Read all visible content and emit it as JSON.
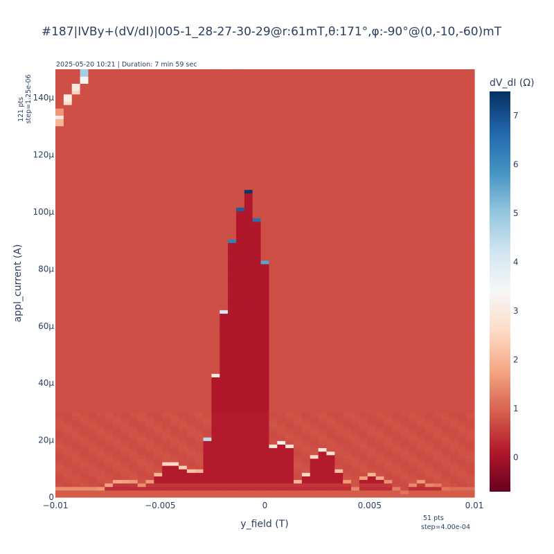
{
  "chart_data": {
    "type": "heatmap",
    "title": "#187|IVBy+(dV/dI)|005-1_28-27-30-29@r:61mT,θ:171°,φ:-90°@(0,-10,-60)mT",
    "subtitle": "2025-05-20 10:21 | Duration: 7 min 59 sec",
    "xlabel": "y_field (T)",
    "ylabel": "appl_current (A)",
    "x_range": [
      -0.01,
      0.01
    ],
    "y_range": [
      0,
      0.00015
    ],
    "x_points_label": "51 pts",
    "x_step_label": "step=4.00e-04",
    "y_points_label": "121 pts",
    "y_step_label": "step=1.25e-06",
    "x_ticks": [
      {
        "value": -0.01,
        "label": "−0.01"
      },
      {
        "value": -0.005,
        "label": "−0.005"
      },
      {
        "value": 0,
        "label": "0"
      },
      {
        "value": 0.005,
        "label": "0.005"
      },
      {
        "value": 0.01,
        "label": "0.01"
      }
    ],
    "y_ticks": [
      {
        "value": 0,
        "label": "0"
      },
      {
        "value": 2e-05,
        "label": "20μ"
      },
      {
        "value": 4e-05,
        "label": "40μ"
      },
      {
        "value": 6e-05,
        "label": "60μ"
      },
      {
        "value": 8e-05,
        "label": "80μ"
      },
      {
        "value": 0.0001,
        "label": "100μ"
      },
      {
        "value": 0.00012,
        "label": "120μ"
      },
      {
        "value": 0.00014,
        "label": "140μ"
      }
    ],
    "colorbar": {
      "title": "dV_dI (Ω)",
      "zmin": -0.7,
      "zmax": 7.5,
      "ticks": [
        {
          "value": 0,
          "label": "0"
        },
        {
          "value": 1,
          "label": "1"
        },
        {
          "value": 2,
          "label": "2"
        },
        {
          "value": 3,
          "label": "3"
        },
        {
          "value": 4,
          "label": "4"
        },
        {
          "value": 5,
          "label": "5"
        },
        {
          "value": 6,
          "label": "6"
        },
        {
          "value": 7,
          "label": "7"
        }
      ],
      "colorscale": [
        [
          0.0,
          "#67001f"
        ],
        [
          0.1,
          "#b2182b"
        ],
        [
          0.2,
          "#d6604d"
        ],
        [
          0.3,
          "#f4a582"
        ],
        [
          0.4,
          "#fddbc7"
        ],
        [
          0.5,
          "#f7f7f7"
        ],
        [
          0.6,
          "#d1e5f0"
        ],
        [
          0.7,
          "#92c5de"
        ],
        [
          0.8,
          "#4393c3"
        ],
        [
          0.9,
          "#2166ac"
        ],
        [
          1.0,
          "#053061"
        ]
      ]
    },
    "series": {
      "normal_state_value": 0.75,
      "superconducting_value": 0.1,
      "critical_current_uA": [
        3,
        3,
        3,
        3,
        3,
        3,
        4,
        5,
        5,
        5,
        4,
        5,
        8,
        11,
        11.5,
        10.5,
        9,
        8.5,
        19.5,
        43,
        65.5,
        90.5,
        101,
        107.5,
        97.5,
        82.5,
        17,
        19,
        17.5,
        5.5,
        8,
        13.5,
        16,
        15,
        9,
        4.5,
        3,
        6,
        7.5,
        6.5,
        4.5,
        2.5,
        1,
        4,
        5,
        4,
        3.5,
        3,
        2.5,
        2.5,
        2.5
      ],
      "peak_value_at_critical": [
        1.5,
        1.5,
        1.5,
        1.5,
        1.5,
        1.6,
        1.7,
        1.8,
        1.7,
        1.6,
        1.5,
        1.6,
        2,
        2.5,
        2.6,
        2.4,
        2.2,
        2,
        4.5,
        3,
        4.2,
        6.2,
        6.8,
        7.4,
        6.5,
        5.6,
        2.8,
        3.2,
        2.8,
        2,
        2.5,
        2.6,
        3,
        2.8,
        2.2,
        1.6,
        1.4,
        1.7,
        2,
        1.8,
        1.5,
        1.3,
        1.2,
        1.4,
        1.6,
        1.4,
        1.3,
        1.2,
        1.1,
        1.1,
        1.1
      ],
      "corner_feature": [
        {
          "x": -0.01,
          "y_uA": [
            133,
            135,
            136.5
          ],
          "values": [
            2.0,
            3.0,
            1.6
          ]
        },
        {
          "x": -0.0096,
          "y_uA": [
            140,
            141.5
          ],
          "values": [
            2.6,
            3.1
          ]
        },
        {
          "x": -0.0092,
          "y_uA": [
            144,
            145.5
          ],
          "values": [
            2.4,
            3.0
          ]
        },
        {
          "x": -0.0088,
          "y_uA": [
            148,
            149.5
          ],
          "values": [
            3.3,
            4.8
          ]
        }
      ]
    }
  }
}
